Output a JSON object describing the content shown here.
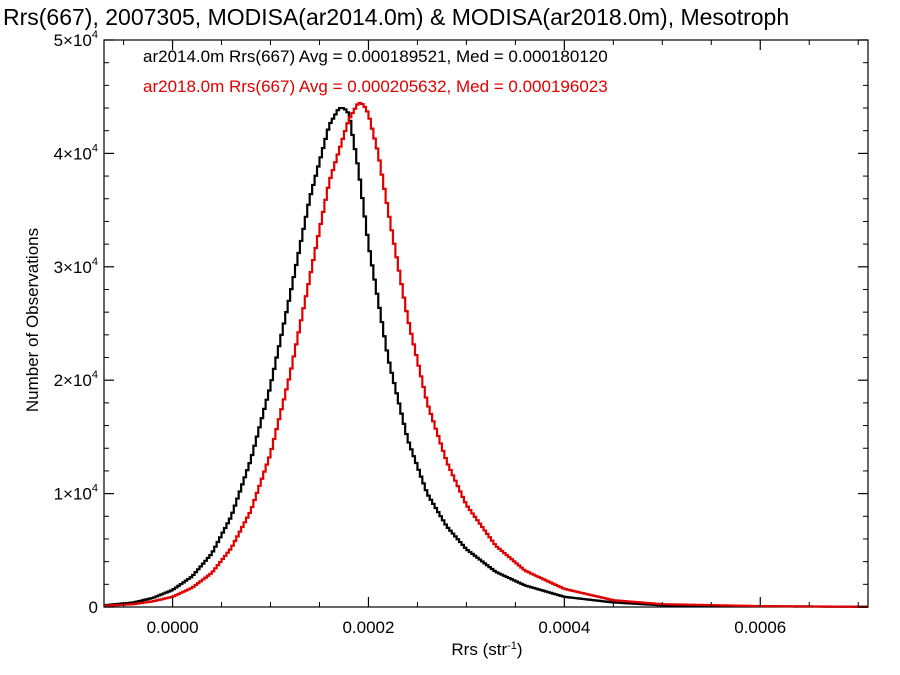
{
  "chart_data": {
    "type": "line",
    "title": "Rrs(667), 2007305, MODISA(ar2014.0m) & MODISA(ar2018.0m), Mesotroph",
    "xlabel": "Rrs (str",
    "xlabel_sup": "-1",
    "xlabel_suffix": ")",
    "ylabel": "Number of Observations",
    "xlim": [
      -7e-05,
      0.00071
    ],
    "ylim": [
      0,
      50000
    ],
    "x_ticks": [
      {
        "value": 0.0,
        "label": "0.0000"
      },
      {
        "value": 0.0002,
        "label": "0.0002"
      },
      {
        "value": 0.0004,
        "label": "0.0004"
      },
      {
        "value": 0.0006,
        "label": "0.0006"
      }
    ],
    "y_ticks": [
      {
        "value": 0,
        "mant": "0",
        "exp": ""
      },
      {
        "value": 10000,
        "mant": "1×10",
        "exp": "4"
      },
      {
        "value": 20000,
        "mant": "2×10",
        "exp": "4"
      },
      {
        "value": 30000,
        "mant": "3×10",
        "exp": "4"
      },
      {
        "value": 40000,
        "mant": "4×10",
        "exp": "4"
      },
      {
        "value": 50000,
        "mant": "5×10",
        "exp": "4"
      }
    ],
    "grid": false,
    "legend_position": "top-left",
    "series": [
      {
        "name": "ar2014.0m",
        "legend": "ar2014.0m Rrs(667) Avg = 0.000189521, Med = 0.000180120",
        "color": "#000000",
        "x": [
          -7e-05,
          -4e-05,
          -2e-05,
          0.0,
          2e-05,
          4e-05,
          6e-05,
          8e-05,
          0.0001,
          0.00012,
          0.00014,
          0.00016,
          0.00017,
          0.000175,
          0.00018,
          0.00019,
          0.0002,
          0.00022,
          0.00024,
          0.00026,
          0.00028,
          0.0003,
          0.00033,
          0.00036,
          0.0004,
          0.00045,
          0.0005,
          0.0006,
          0.00071
        ],
        "y": [
          150,
          400,
          800,
          1500,
          2700,
          4700,
          8000,
          13000,
          19500,
          27500,
          36000,
          42500,
          44000,
          44000,
          43500,
          38500,
          32000,
          22000,
          14800,
          10000,
          7100,
          5100,
          3100,
          1900,
          900,
          400,
          150,
          60,
          20
        ]
      },
      {
        "name": "ar2018.0m",
        "legend": "ar2018.0m Rrs(667) Avg = 0.000205632, Med = 0.000196023",
        "color": "#e00000",
        "x": [
          -7e-05,
          -4e-05,
          -2e-05,
          0.0,
          2e-05,
          4e-05,
          6e-05,
          8e-05,
          0.0001,
          0.00012,
          0.00014,
          0.00016,
          0.00018,
          0.00019,
          0.000195,
          0.0002,
          0.00021,
          0.00022,
          0.00024,
          0.00026,
          0.00028,
          0.0003,
          0.00033,
          0.00036,
          0.0004,
          0.00045,
          0.0005,
          0.0006,
          0.00071
        ],
        "y": [
          100,
          250,
          500,
          900,
          1700,
          3000,
          5200,
          8500,
          13500,
          20500,
          29000,
          37500,
          43000,
          44500,
          44300,
          43500,
          40000,
          35000,
          25500,
          18000,
          12800,
          9000,
          5400,
          3200,
          1600,
          600,
          250,
          80,
          20
        ]
      }
    ]
  }
}
